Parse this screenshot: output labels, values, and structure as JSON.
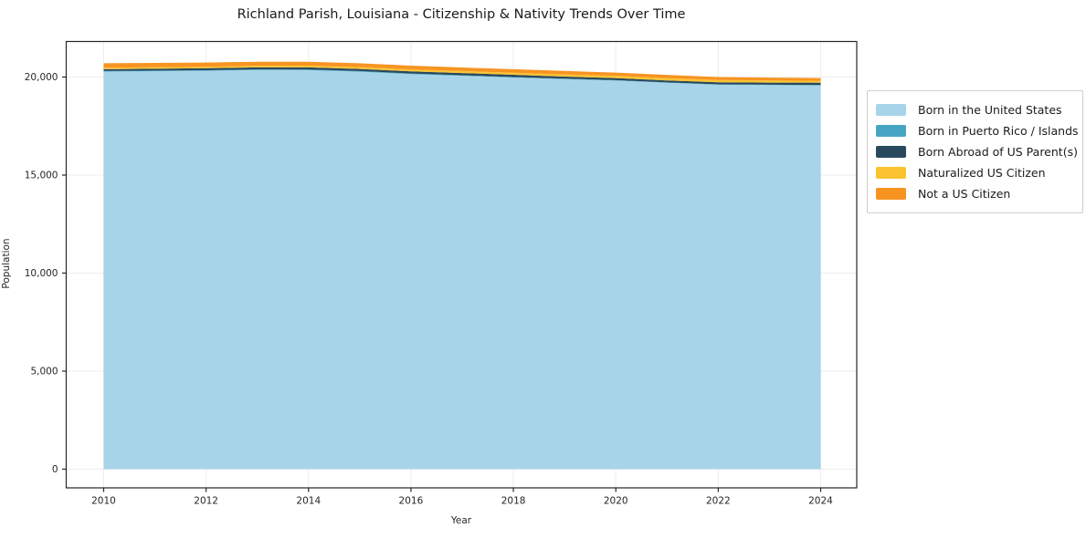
{
  "title": "Richland Parish, Louisiana - Citizenship & Nativity Trends Over Time",
  "axes": {
    "xlabel": "Year",
    "ylabel": "Population",
    "xticks": [
      2010,
      2012,
      2014,
      2016,
      2018,
      2020,
      2022,
      2024
    ],
    "yticks": [
      0,
      5000,
      10000,
      15000,
      20000
    ],
    "ytick_labels": [
      "0",
      "5,000",
      "10,000",
      "15,000",
      "20,000"
    ]
  },
  "legend": {
    "entries": [
      {
        "label": "Born in the United States",
        "color": "#a8d4ea"
      },
      {
        "label": "Born in Puerto Rico / Islands",
        "color": "#46a5c4"
      },
      {
        "label": "Born Abroad of US Parent(s)",
        "color": "#29495e"
      },
      {
        "label": "Naturalized US Citizen",
        "color": "#fcc330"
      },
      {
        "label": "Not a US Citizen",
        "color": "#f79421"
      }
    ]
  },
  "chart_data": {
    "type": "area",
    "stacked": true,
    "title": "Richland Parish, Louisiana - Citizenship & Nativity Trends Over Time",
    "xlabel": "Year",
    "ylabel": "Population",
    "x": [
      2010,
      2011,
      2012,
      2013,
      2014,
      2015,
      2016,
      2017,
      2018,
      2019,
      2020,
      2021,
      2022,
      2023,
      2024
    ],
    "series": [
      {
        "name": "Born in the United States",
        "color": "#a8d4ea",
        "values": [
          20280,
          20300,
          20320,
          20360,
          20355,
          20275,
          20155,
          20065,
          19978,
          19893,
          19818,
          19705,
          19610,
          19590,
          19575
        ]
      },
      {
        "name": "Born in Puerto Rico / Islands",
        "color": "#46a5c4",
        "values": [
          30,
          30,
          30,
          30,
          30,
          30,
          28,
          26,
          24,
          22,
          22,
          20,
          20,
          18,
          15
        ]
      },
      {
        "name": "Born Abroad of US Parent(s)",
        "color": "#29495e",
        "values": [
          95,
          95,
          100,
          105,
          110,
          110,
          112,
          112,
          112,
          110,
          108,
          105,
          100,
          110,
          120
        ]
      },
      {
        "name": "Naturalized US Citizen",
        "color": "#fcc330",
        "values": [
          70,
          75,
          75,
          80,
          85,
          90,
          95,
          102,
          106,
          110,
          112,
          115,
          115,
          104,
          95
        ]
      },
      {
        "name": "Not a US Citizen",
        "color": "#f79421",
        "values": [
          225,
          220,
          215,
          205,
          200,
          195,
          190,
          185,
          180,
          175,
          170,
          165,
          155,
          148,
          145
        ]
      }
    ],
    "xlim": [
      2010,
      2024
    ],
    "ylim": [
      0,
      20000
    ],
    "grid": true,
    "legend_position": "right"
  },
  "style": {
    "grid_color": "#ececec",
    "spine_color": "#262626",
    "tick_label_color": "#262626",
    "background": "#ffffff"
  }
}
